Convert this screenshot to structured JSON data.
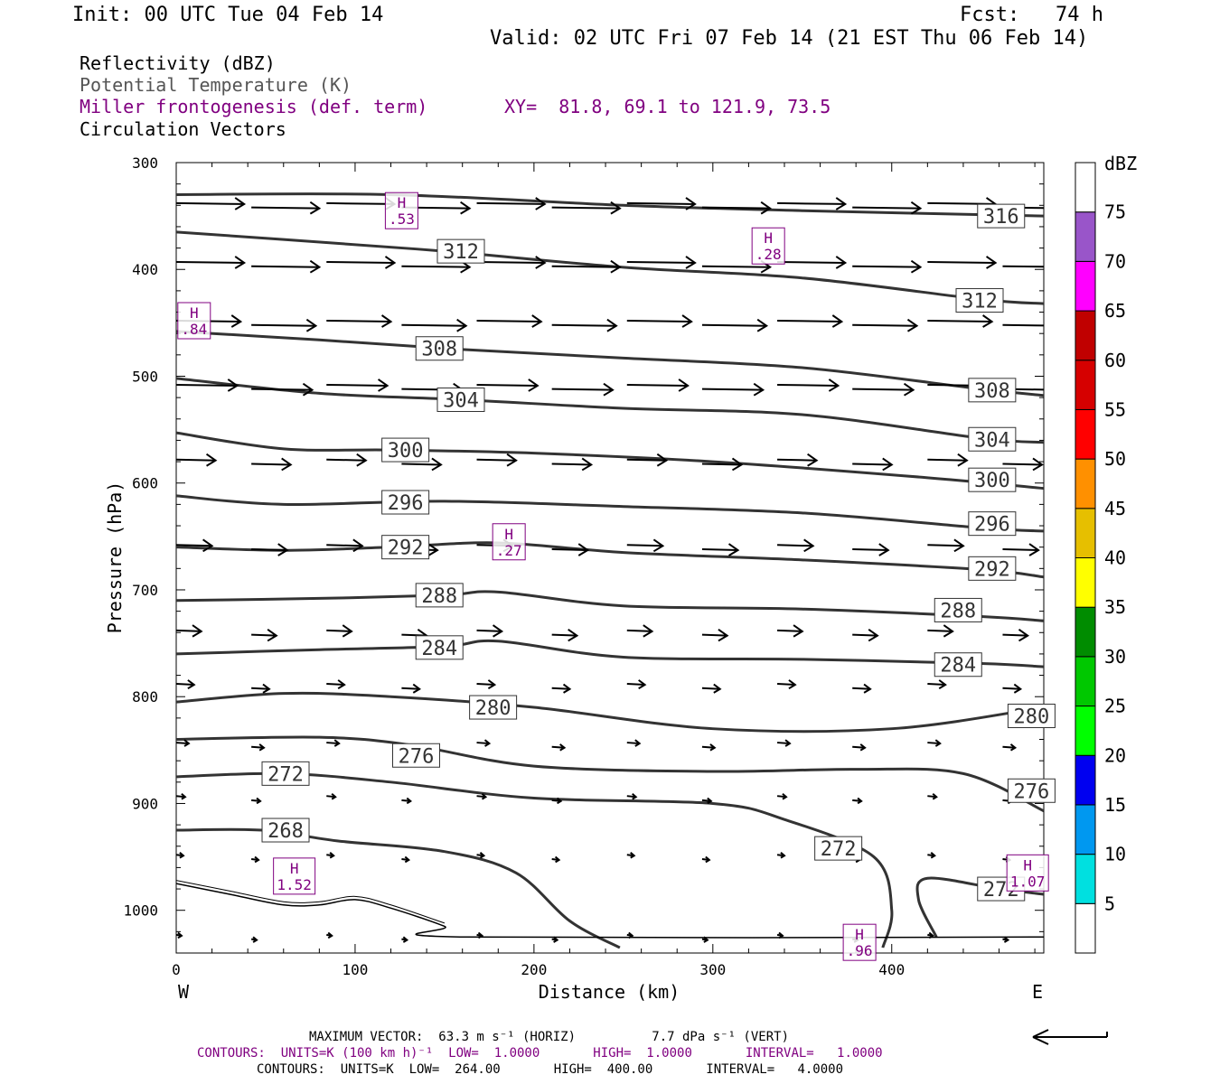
{
  "header": {
    "init": "Init: 00 UTC Tue 04 Feb 14",
    "fcst": "Fcst:   74 h",
    "valid": "Valid: 02 UTC Fri 07 Feb 14 (21 EST Thu 06 Feb 14)"
  },
  "legend": {
    "reflectivity": "Reflectivity (dBZ)",
    "theta": "Potential Temperature (K)",
    "miller": "Miller frontogenesis (def. term)",
    "xy": "XY=  81.8, 69.1 to 121.9, 73.5",
    "vectors": "Circulation Vectors"
  },
  "colors": {
    "contour": "#333333",
    "frontogenesis": "#800080",
    "arrow": "#000000"
  },
  "chart_data": {
    "type": "line",
    "xlabel": "Distance (km)",
    "ylabel": "Pressure (hPa)",
    "xlim": [
      0,
      485
    ],
    "ylim": [
      1040,
      300
    ],
    "x_ticks": [
      0,
      100,
      200,
      300,
      400
    ],
    "y_ticks": [
      300,
      400,
      500,
      600,
      700,
      800,
      900,
      1000
    ],
    "x_end_labels": {
      "left": "W",
      "right": "E"
    },
    "theta_contours": [
      {
        "label": "316",
        "points": [
          [
            0,
            330
          ],
          [
            120,
            330
          ],
          [
            250,
            340
          ],
          [
            350,
            345
          ],
          [
            485,
            350
          ]
        ],
        "labels_at": [
          [
            448,
            350
          ]
        ]
      },
      {
        "label": "312",
        "points": [
          [
            0,
            365
          ],
          [
            60,
            372
          ],
          [
            150,
            383
          ],
          [
            250,
            398
          ],
          [
            350,
            408
          ],
          [
            450,
            428
          ],
          [
            485,
            432
          ]
        ],
        "labels_at": [
          [
            146,
            383
          ],
          [
            436,
            429
          ]
        ]
      },
      {
        "label": "308",
        "points": [
          [
            0,
            458
          ],
          [
            80,
            466
          ],
          [
            160,
            475
          ],
          [
            250,
            483
          ],
          [
            350,
            492
          ],
          [
            450,
            512
          ],
          [
            485,
            518
          ]
        ],
        "labels_at": [
          [
            134,
            474
          ],
          [
            443,
            513
          ]
        ]
      },
      {
        "label": "304",
        "points": [
          [
            0,
            502
          ],
          [
            80,
            516
          ],
          [
            160,
            522
          ],
          [
            250,
            530
          ],
          [
            350,
            536
          ],
          [
            450,
            558
          ],
          [
            485,
            562
          ]
        ],
        "labels_at": [
          [
            146,
            522
          ],
          [
            443,
            559
          ]
        ]
      },
      {
        "label": "300",
        "points": [
          [
            0,
            553
          ],
          [
            60,
            568
          ],
          [
            120,
            569
          ],
          [
            200,
            572
          ],
          [
            300,
            580
          ],
          [
            420,
            595
          ],
          [
            485,
            605
          ]
        ],
        "labels_at": [
          [
            115,
            569
          ],
          [
            443,
            597
          ]
        ]
      },
      {
        "label": "296",
        "points": [
          [
            0,
            612
          ],
          [
            60,
            620
          ],
          [
            150,
            617
          ],
          [
            250,
            622
          ],
          [
            350,
            628
          ],
          [
            450,
            642
          ],
          [
            485,
            645
          ]
        ],
        "labels_at": [
          [
            115,
            618
          ],
          [
            443,
            638
          ]
        ]
      },
      {
        "label": "292",
        "points": [
          [
            0,
            660
          ],
          [
            60,
            663
          ],
          [
            120,
            660
          ],
          [
            180,
            656
          ],
          [
            250,
            665
          ],
          [
            350,
            672
          ],
          [
            450,
            681
          ],
          [
            485,
            688
          ]
        ],
        "labels_at": [
          [
            115,
            660
          ],
          [
            443,
            680
          ]
        ]
      },
      {
        "label": "288",
        "points": [
          [
            0,
            710
          ],
          [
            80,
            708
          ],
          [
            150,
            705
          ],
          [
            180,
            702
          ],
          [
            250,
            715
          ],
          [
            350,
            718
          ],
          [
            450,
            725
          ],
          [
            485,
            729
          ]
        ],
        "labels_at": [
          [
            134,
            705
          ],
          [
            424,
            719
          ]
        ]
      },
      {
        "label": "284",
        "points": [
          [
            0,
            760
          ],
          [
            80,
            756
          ],
          [
            150,
            753
          ],
          [
            180,
            748
          ],
          [
            250,
            763
          ],
          [
            350,
            765
          ],
          [
            450,
            769
          ],
          [
            485,
            772
          ]
        ],
        "labels_at": [
          [
            134,
            754
          ],
          [
            424,
            770
          ]
        ]
      },
      {
        "label": "280",
        "points": [
          [
            0,
            805
          ],
          [
            60,
            797
          ],
          [
            120,
            800
          ],
          [
            200,
            810
          ],
          [
            300,
            830
          ],
          [
            400,
            830
          ],
          [
            485,
            810
          ]
        ],
        "labels_at": [
          [
            164,
            810
          ],
          [
            465,
            818
          ]
        ]
      },
      {
        "label": "276",
        "points": [
          [
            0,
            840
          ],
          [
            80,
            838
          ],
          [
            130,
            845
          ],
          [
            200,
            865
          ],
          [
            300,
            870
          ],
          [
            380,
            868
          ],
          [
            440,
            872
          ],
          [
            485,
            907
          ]
        ],
        "labels_at": [
          [
            121,
            855
          ],
          [
            465,
            888
          ]
        ]
      },
      {
        "label": "272",
        "points": [
          [
            0,
            875
          ],
          [
            60,
            872
          ],
          [
            120,
            880
          ],
          [
            200,
            895
          ],
          [
            300,
            900
          ],
          [
            340,
            915
          ],
          [
            390,
            950
          ],
          [
            400,
            1000
          ],
          [
            395,
            1035
          ]
        ],
        "labels_at": [
          [
            48,
            872
          ],
          [
            357,
            942
          ],
          [
            448,
            980
          ]
        ]
      },
      {
        "label": "272",
        "points": [
          [
            485,
            985
          ],
          [
            460,
            980
          ],
          [
            420,
            970
          ],
          [
            415,
            990
          ],
          [
            425,
            1025
          ]
        ],
        "labels_at": []
      },
      {
        "label": "268",
        "points": [
          [
            0,
            925
          ],
          [
            48,
            925
          ],
          [
            90,
            935
          ],
          [
            150,
            945
          ],
          [
            190,
            965
          ],
          [
            220,
            1010
          ],
          [
            248,
            1035
          ]
        ],
        "labels_at": [
          [
            48,
            925
          ]
        ]
      }
    ],
    "frontogenesis_maxima": [
      {
        "label": "H",
        "value": ".53",
        "x": 126,
        "y": 345
      },
      {
        "label": "H",
        "value": ".28",
        "x": 331,
        "y": 378
      },
      {
        "label": "H",
        "value": ".84",
        "x": 10,
        "y": 448
      },
      {
        "label": "H",
        "value": ".27",
        "x": 186,
        "y": 655
      },
      {
        "label": "H",
        "value": "1.52",
        "x": 66,
        "y": 968
      },
      {
        "label": "H",
        "value": ".96",
        "x": 382,
        "y": 1030
      },
      {
        "label": "H",
        "value": "1.07",
        "x": 476,
        "y": 965
      }
    ],
    "vector_rows": [
      {
        "p": 340,
        "start_x": 0,
        "length_km": 38
      },
      {
        "p": 395,
        "start_x": 0,
        "length_km": 38
      },
      {
        "p": 450,
        "start_x": 0,
        "length_km": 36
      },
      {
        "p": 510,
        "start_x": 0,
        "length_km": 34
      },
      {
        "p": 580,
        "start_x": 0,
        "length_km": 22
      },
      {
        "p": 660,
        "start_x": 0,
        "length_km": 20
      },
      {
        "p": 740,
        "start_x": 0,
        "length_km": 14
      },
      {
        "p": 790,
        "start_x": 0,
        "length_km": 10
      },
      {
        "p": 845,
        "start_x": 0,
        "length_km": 7
      },
      {
        "p": 895,
        "start_x": 0,
        "length_km": 5
      },
      {
        "p": 950,
        "start_x": 0,
        "length_km": 4
      },
      {
        "p": 1025,
        "start_x": 0,
        "length_km": 3
      }
    ],
    "colorbar": {
      "unit": "dBZ",
      "levels": [
        "5",
        "10",
        "15",
        "20",
        "25",
        "30",
        "35",
        "40",
        "45",
        "50",
        "55",
        "60",
        "65",
        "70",
        "75"
      ],
      "colors": [
        "#00e0e0",
        "#0098f0",
        "#0000f0",
        "#00ff00",
        "#00c800",
        "#008c00",
        "#ffff00",
        "#e6bf00",
        "#ff9000",
        "#ff0000",
        "#d60000",
        "#c00000",
        "#ff00ff",
        "#9955c9",
        "#ffffff"
      ]
    }
  },
  "footer": {
    "max_vector": "MAXIMUM VECTOR:  63.3 m s⁻¹ (HORIZ)          7.7 dPa s⁻¹ (VERT)",
    "contours_purple": "CONTOURS:  UNITS=K (100 km h)⁻¹  LOW=  1.0000       HIGH=  1.0000       INTERVAL=   1.0000",
    "contours_black": "CONTOURS:  UNITS=K  LOW=  264.00       HIGH=  400.00       INTERVAL=   4.0000"
  }
}
